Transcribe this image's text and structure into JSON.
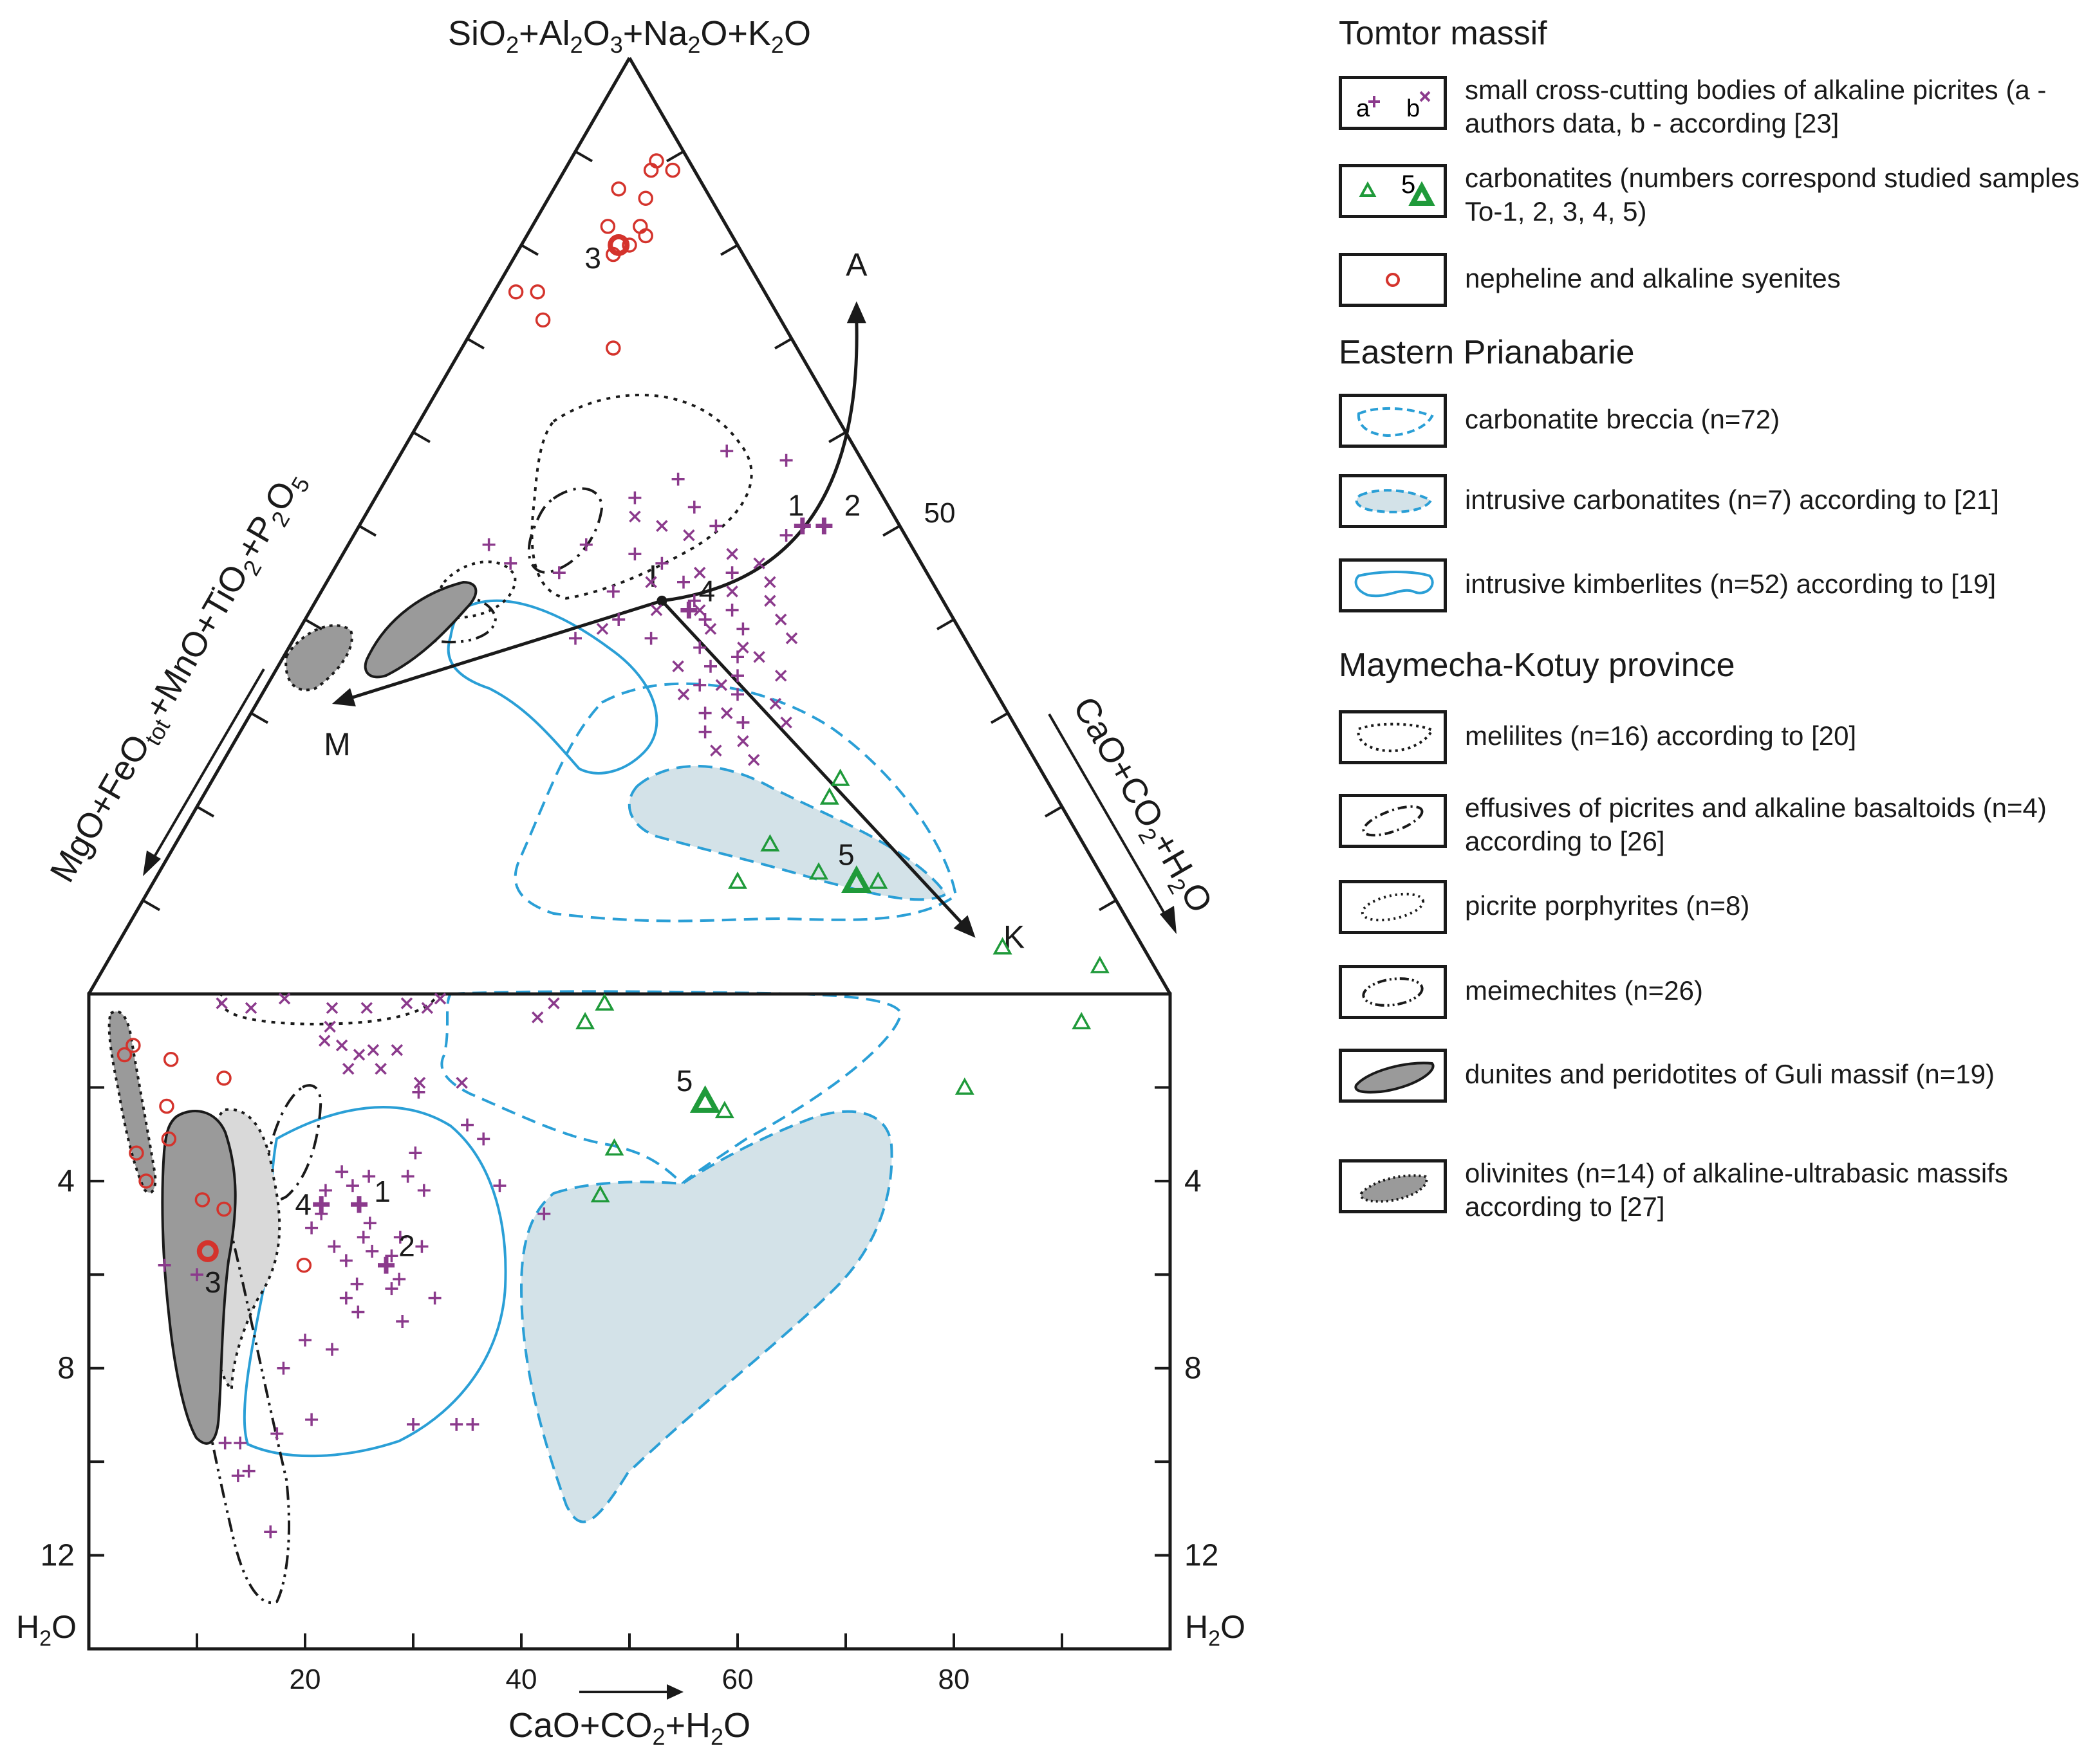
{
  "chart_data": [
    {
      "type": "scatter",
      "subtype": "ternary",
      "title": "",
      "apex_top_label": "SiO2+Al2O3+Na2O+K2O",
      "left_edge_label": "MgO+FeOtot+MnO+TiO2+P2O5",
      "right_edge_label": "CaO+CO2+H2O",
      "right_edge_tick_label": "50",
      "trend_points": [
        {
          "label": "I",
          "si": 0.42,
          "cao": 0.32
        },
        {
          "label": "A",
          "si": 0.74,
          "cao": 0.34
        },
        {
          "label": "M",
          "si": 0.31,
          "cao": 0.07
        },
        {
          "label": "K",
          "si": 0.06,
          "cao": 0.79
        }
      ],
      "sample_labels": [
        "1",
        "2",
        "3",
        "4",
        "5"
      ],
      "series": [
        {
          "name": "nepheline and alkaline syenites",
          "marker": "circle",
          "color": "#d4332c",
          "points": [
            [
              0.88,
              0.08
            ],
            [
              0.89,
              0.08
            ],
            [
              0.88,
              0.1
            ],
            [
              0.86,
              0.06
            ],
            [
              0.85,
              0.09
            ],
            [
              0.82,
              0.07
            ],
            [
              0.82,
              0.1
            ],
            [
              0.81,
              0.11
            ],
            [
              0.8,
              0.1
            ],
            [
              0.79,
              0.09
            ],
            [
              0.75,
              0.02
            ],
            [
              0.75,
              0.04
            ],
            [
              0.72,
              0.06
            ],
            [
              0.69,
              0.14
            ]
          ]
        },
        {
          "name": "nepheline and alkaline syenites (sample 3)",
          "marker": "circle-bold",
          "color": "#d4332c",
          "points": [
            [
              0.8,
              0.09
            ]
          ]
        },
        {
          "name": "small cross-cutting bodies of alkaline picrites (a)",
          "marker": "plus",
          "color": "#8b3a8c",
          "points": [
            [
              0.58,
              0.3
            ],
            [
              0.57,
              0.36
            ],
            [
              0.55,
              0.27
            ],
            [
              0.53,
              0.24
            ],
            [
              0.52,
              0.3
            ],
            [
              0.5,
              0.33
            ],
            [
              0.49,
              0.4
            ],
            [
              0.48,
              0.22
            ],
            [
              0.47,
              0.27
            ],
            [
              0.46,
              0.3
            ],
            [
              0.45,
              0.37
            ],
            [
              0.44,
              0.33
            ],
            [
              0.42,
              0.35
            ],
            [
              0.41,
              0.39
            ],
            [
              0.4,
              0.37
            ],
            [
              0.39,
              0.41
            ],
            [
              0.38,
              0.33
            ],
            [
              0.37,
              0.38
            ],
            [
              0.36,
              0.42
            ],
            [
              0.35,
              0.4
            ],
            [
              0.34,
              0.43
            ],
            [
              0.33,
              0.4
            ],
            [
              0.32,
              0.44
            ],
            [
              0.3,
              0.42
            ],
            [
              0.29,
              0.46
            ],
            [
              0.28,
              0.43
            ],
            [
              0.43,
              0.27
            ],
            [
              0.4,
              0.29
            ],
            [
              0.46,
              0.16
            ],
            [
              0.48,
              0.13
            ],
            [
              0.45,
              0.21
            ],
            [
              0.38,
              0.26
            ]
          ]
        },
        {
          "name": "small cross-cutting bodies of alkaline picrites (b)",
          "marker": "cross",
          "color": "#8b3a8c",
          "points": [
            [
              0.51,
              0.25
            ],
            [
              0.5,
              0.28
            ],
            [
              0.49,
              0.31
            ],
            [
              0.47,
              0.36
            ],
            [
              0.46,
              0.39
            ],
            [
              0.45,
              0.34
            ],
            [
              0.44,
              0.41
            ],
            [
              0.43,
              0.38
            ],
            [
              0.42,
              0.42
            ],
            [
              0.41,
              0.36
            ],
            [
              0.4,
              0.44
            ],
            [
              0.39,
              0.38
            ],
            [
              0.38,
              0.46
            ],
            [
              0.37,
              0.42
            ],
            [
              0.36,
              0.44
            ],
            [
              0.35,
              0.37
            ],
            [
              0.34,
              0.47
            ],
            [
              0.33,
              0.42
            ],
            [
              0.32,
              0.39
            ],
            [
              0.31,
              0.48
            ],
            [
              0.3,
              0.44
            ],
            [
              0.29,
              0.5
            ],
            [
              0.27,
              0.47
            ],
            [
              0.26,
              0.45
            ],
            [
              0.25,
              0.49
            ],
            [
              0.44,
              0.3
            ],
            [
              0.41,
              0.32
            ],
            [
              0.39,
              0.28
            ]
          ]
        },
        {
          "name": "alkaline picrites, studied samples 1, 2, 4",
          "marker": "plus-bold",
          "color": "#8b3a8c",
          "points": [
            [
              0.5,
              0.41
            ],
            [
              0.5,
              0.43
            ],
            [
              0.41,
              0.35
            ]
          ]
        },
        {
          "name": "carbonatites",
          "marker": "triangle",
          "color": "#1f9a3a",
          "points": [
            [
              0.23,
              0.58
            ],
            [
              0.21,
              0.58
            ],
            [
              0.16,
              0.55
            ],
            [
              0.13,
              0.61
            ],
            [
              0.12,
              0.67
            ],
            [
              0.05,
              0.82
            ],
            [
              0.03,
              0.92
            ],
            [
              0.12,
              0.54
            ]
          ]
        },
        {
          "name": "carbonatites (sample 5)",
          "marker": "triangle-bold",
          "color": "#1f9a3a",
          "points": [
            [
              0.12,
              0.65
            ]
          ]
        }
      ],
      "regions": [
        {
          "name": "carbonatite breccia (n=72)",
          "style": "dashed",
          "color": "#2a9fd6",
          "fill": "none"
        },
        {
          "name": "intrusive carbonatites (n=7)",
          "style": "dashed",
          "color": "#2a9fd6",
          "fill": "#d3e2e8"
        },
        {
          "name": "intrusive kimberlites (n=52)",
          "style": "solid",
          "color": "#2a9fd6",
          "fill": "none"
        },
        {
          "name": "melilites (n=16)",
          "style": "dotted",
          "color": "#1a1a1a",
          "fill": "none"
        },
        {
          "name": "effusives of picrites and alkaline basaltoids (n=4)",
          "style": "dash-dot",
          "color": "#1a1a1a",
          "fill": "none"
        },
        {
          "name": "picrite porphyrites (n=8)",
          "style": "dotted",
          "color": "#1a1a1a",
          "fill": "none"
        },
        {
          "name": "meimechites (n=26)",
          "style": "dash-dot-dot",
          "color": "#1a1a1a",
          "fill": "none"
        },
        {
          "name": "dunites and peridotites of Guli massif (n=19)",
          "style": "solid",
          "color": "#1a1a1a",
          "fill": "#9a9a9a"
        },
        {
          "name": "olivinites (n=14)",
          "style": "dotted",
          "color": "#1a1a1a",
          "fill": "#9a9a9a"
        }
      ]
    },
    {
      "type": "scatter",
      "subtype": "binary",
      "title": "",
      "xlabel": "CaO+CO2+H2O",
      "ylabel_left": "H2O",
      "ylabel_right": "H2O",
      "xlim": [
        0,
        100
      ],
      "ylim": [
        0,
        14
      ],
      "y_inverted": true,
      "x_ticks": [
        20,
        40,
        60,
        80
      ],
      "y_ticks": [
        4,
        8,
        12
      ],
      "series": [
        {
          "name": "nepheline and alkaline syenites",
          "marker": "circle",
          "color": "#d4332c",
          "points": [
            [
              3.3,
              1.3
            ],
            [
              4.1,
              1.1
            ],
            [
              7.6,
              1.4
            ],
            [
              12.5,
              1.8
            ],
            [
              7.2,
              2.4
            ],
            [
              7.4,
              3.1
            ],
            [
              4.4,
              3.4
            ],
            [
              5.3,
              4.0
            ],
            [
              10.5,
              4.4
            ],
            [
              12.5,
              4.6
            ],
            [
              19.9,
              5.8
            ]
          ]
        },
        {
          "name": "nepheline and alkaline syenites (sample 3)",
          "marker": "circle-bold",
          "color": "#d4332c",
          "points": [
            [
              11.0,
              5.5
            ]
          ]
        },
        {
          "name": "small cross-cutting bodies of alkaline picrites (a)",
          "marker": "plus",
          "color": "#8b3a8c",
          "points": [
            [
              20.6,
              5.0
            ],
            [
              21.5,
              4.7
            ],
            [
              21.9,
              4.2
            ],
            [
              23.4,
              3.8
            ],
            [
              24.4,
              4.1
            ],
            [
              25.9,
              3.9
            ],
            [
              26.0,
              4.9
            ],
            [
              22.7,
              5.4
            ],
            [
              23.8,
              5.7
            ],
            [
              24.8,
              6.2
            ],
            [
              23.8,
              6.5
            ],
            [
              24.9,
              6.8
            ],
            [
              25.4,
              5.2
            ],
            [
              26.2,
              5.5
            ],
            [
              28.0,
              5.6
            ],
            [
              28.8,
              5.2
            ],
            [
              28.7,
              6.1
            ],
            [
              28.0,
              6.3
            ],
            [
              29.5,
              3.9
            ],
            [
              30.2,
              3.4
            ],
            [
              31.0,
              4.2
            ],
            [
              30.8,
              5.4
            ],
            [
              29.0,
              7.0
            ],
            [
              32.0,
              6.5
            ],
            [
              30.5,
              2.1
            ],
            [
              35.0,
              2.8
            ],
            [
              36.5,
              3.1
            ],
            [
              38.0,
              4.1
            ],
            [
              42.1,
              4.7
            ],
            [
              20.0,
              7.4
            ],
            [
              22.5,
              7.6
            ],
            [
              18.0,
              8.0
            ],
            [
              17.4,
              9.4
            ],
            [
              20.6,
              9.1
            ],
            [
              30.0,
              9.2
            ],
            [
              34.0,
              9.2
            ],
            [
              35.5,
              9.2
            ],
            [
              13.8,
              10.3
            ],
            [
              14.8,
              10.2
            ],
            [
              16.8,
              11.5
            ],
            [
              7.0,
              5.8
            ],
            [
              10.0,
              6.0
            ],
            [
              12.6,
              9.6
            ],
            [
              14.0,
              9.6
            ]
          ]
        },
        {
          "name": "small cross-cutting bodies of alkaline picrites (b)",
          "marker": "cross",
          "color": "#8b3a8c",
          "points": [
            [
              12.3,
              0.2
            ],
            [
              15.0,
              0.3
            ],
            [
              18.1,
              0.1
            ],
            [
              22.5,
              0.3
            ],
            [
              25.7,
              0.3
            ],
            [
              29.4,
              0.2
            ],
            [
              31.3,
              0.3
            ],
            [
              32.5,
              0.1
            ],
            [
              21.8,
              1.0
            ],
            [
              22.3,
              0.7
            ],
            [
              23.4,
              1.1
            ],
            [
              24.0,
              1.6
            ],
            [
              25.0,
              1.3
            ],
            [
              26.3,
              1.2
            ],
            [
              27.0,
              1.6
            ],
            [
              28.5,
              1.2
            ],
            [
              30.6,
              1.9
            ],
            [
              34.5,
              1.9
            ],
            [
              41.5,
              0.5
            ],
            [
              43.0,
              0.2
            ]
          ]
        },
        {
          "name": "alkaline picrites, studied samples 1, 2, 4",
          "marker": "plus-bold",
          "color": "#8b3a8c",
          "points": [
            [
              25.0,
              4.5
            ],
            [
              27.5,
              5.8
            ],
            [
              21.5,
              4.5
            ]
          ]
        },
        {
          "name": "carbonatites",
          "marker": "triangle",
          "color": "#1f9a3a",
          "points": [
            [
              47.7,
              0.2
            ],
            [
              45.9,
              0.6
            ],
            [
              91.8,
              0.6
            ],
            [
              81.0,
              2.0
            ],
            [
              58.8,
              2.5
            ],
            [
              48.6,
              3.3
            ],
            [
              47.3,
              4.3
            ]
          ]
        },
        {
          "name": "carbonatites (sample 5)",
          "marker": "triangle-bold",
          "color": "#1f9a3a",
          "points": [
            [
              57.0,
              2.3
            ]
          ]
        }
      ]
    }
  ],
  "legend": {
    "sections": [
      {
        "title": "Tomtor massif",
        "items": [
          {
            "text": "small cross-cutting bodies of alkaline picrites (a - authors data, b - according [23]",
            "sym_a": "a",
            "sym_b": "b"
          },
          {
            "text": "carbonatites (numbers correspond studied samples To-1, 2, 3, 4, 5)",
            "sym_num": "5"
          },
          {
            "text": "nepheline and alkaline syenites"
          }
        ]
      },
      {
        "title": "Eastern Prianabarie",
        "items": [
          {
            "text": "carbonatite breccia (n=72)"
          },
          {
            "text": "intrusive carbonatites (n=7) according to [21]"
          },
          {
            "text": "intrusive kimberlites (n=52) according to [19]"
          }
        ]
      },
      {
        "title": "Maymecha-Kotuy province",
        "items": [
          {
            "text": "melilites (n=16) according to [20]"
          },
          {
            "text": "effusives of picrites and alkaline basaltoids (n=4) according to [26]"
          },
          {
            "text": "picrite porphyrites (n=8)"
          },
          {
            "text": "meimechites (n=26)"
          },
          {
            "text": "dunites and peridotites of Guli massif (n=19)"
          },
          {
            "text": "olivinites (n=14) of alkaline-ultrabasic massifs according to [27]"
          }
        ]
      }
    ]
  },
  "colors": {
    "syenite": "#d4332c",
    "picrite": "#8b3a8c",
    "carbonatite": "#1f9a3a",
    "kimberlite_line": "#2a9fd6",
    "carbonatite_fill": "#d3e2e8",
    "guli_fill": "#9a9a9a",
    "porphyrite_fill": "#d9d9d9",
    "axis": "#1a1a1a"
  }
}
